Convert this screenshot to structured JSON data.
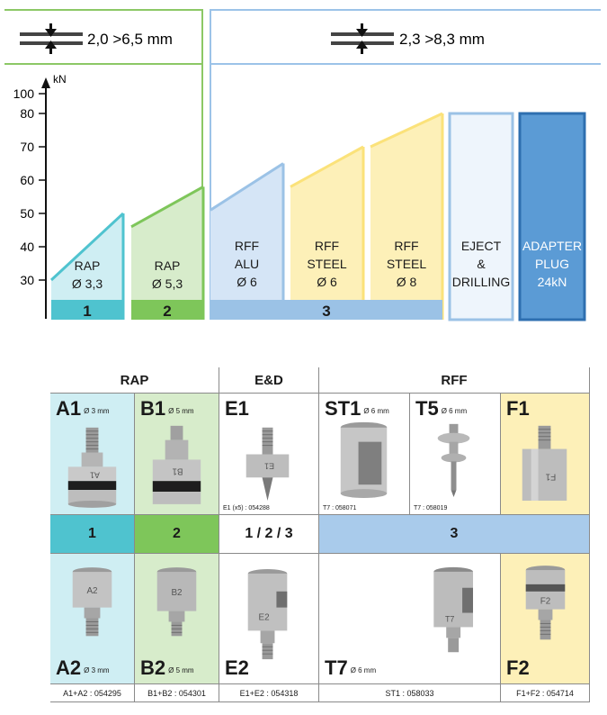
{
  "ranges": {
    "small": {
      "label": "2,0 >6,5 mm",
      "icon": "compress-arrows-icon"
    },
    "large": {
      "label": "2,3 >8,3 mm",
      "icon": "compress-arrows-icon"
    }
  },
  "colors": {
    "cyan": "#4fc3cf",
    "cyan_light": "#cfeef3",
    "green": "#7ec65a",
    "green_light": "#d7eccb",
    "blue": "#9bc2e6",
    "blue_light": "#d5e5f6",
    "yellow": "#fbe27a",
    "yellow_light": "#fdf0b8",
    "white_blue": "#eef5fc",
    "adapter": "#5b9bd5",
    "frame_green": "#8cc866",
    "frame_blue": "#9cc3e8"
  },
  "chart_data": {
    "type": "bar",
    "ylabel": "kN",
    "y_ticks": [
      30,
      40,
      50,
      60,
      70,
      80,
      100
    ],
    "bars": [
      {
        "label": [
          "RAP",
          "Ø 3,3"
        ],
        "min": 30,
        "max": 50,
        "group": "1"
      },
      {
        "label": [
          "RAP",
          "Ø 5,3"
        ],
        "min": 46,
        "max": 58,
        "group": "2"
      },
      {
        "label": [
          "RFF",
          "ALU",
          "Ø 6"
        ],
        "min": 51,
        "max": 65,
        "group": "3"
      },
      {
        "label": [
          "RFF",
          "STEEL",
          "Ø 6"
        ],
        "min": 58,
        "max": 70,
        "group": "3"
      },
      {
        "label": [
          "RFF",
          "STEEL",
          "Ø 8"
        ],
        "min": 70,
        "max": 80,
        "group": "3"
      },
      {
        "label": [
          "EJECT",
          "&",
          "DRILLING"
        ],
        "value": 80
      },
      {
        "label": [
          "ADAPTER",
          "PLUG",
          "24kN"
        ],
        "value": 80
      }
    ],
    "groups": [
      "1",
      "2",
      "3"
    ]
  },
  "table": {
    "headers": [
      "RAP",
      "E&D",
      "RFF"
    ],
    "top_row": [
      {
        "code": "A1",
        "dia": "Ø 3 mm",
        "pn": ""
      },
      {
        "code": "B1",
        "dia": "Ø 5 mm",
        "pn": ""
      },
      {
        "code": "E1",
        "dia": "",
        "pn": "E1 (x5) : 054288"
      },
      {
        "code": "ST1",
        "dia": "Ø 6 mm",
        "pn": "T7 : 058071"
      },
      {
        "code": "T5",
        "dia": "Ø 6 mm",
        "pn": "T7 : 058019"
      },
      {
        "code": "F1",
        "dia": "",
        "pn": ""
      }
    ],
    "bands": [
      "1",
      "2",
      "1 / 2 / 3",
      "3"
    ],
    "bottom_row": [
      {
        "code": "A2",
        "dia": "Ø 3 mm"
      },
      {
        "code": "B2",
        "dia": "Ø 5 mm"
      },
      {
        "code": "E2",
        "dia": ""
      },
      {
        "code": "T7",
        "dia": "Ø 6 mm"
      },
      {
        "code": "F2",
        "dia": ""
      }
    ],
    "part_markings": [
      "A1",
      "B1",
      "E1",
      "T7",
      "F1",
      "A2",
      "B2",
      "E2",
      "F2"
    ],
    "refs": [
      "A1+A2 : 054295",
      "B1+B2 : 054301",
      "E1+E2 : 054318",
      "ST1 : 058033",
      "F1+F2 : 054714"
    ]
  }
}
